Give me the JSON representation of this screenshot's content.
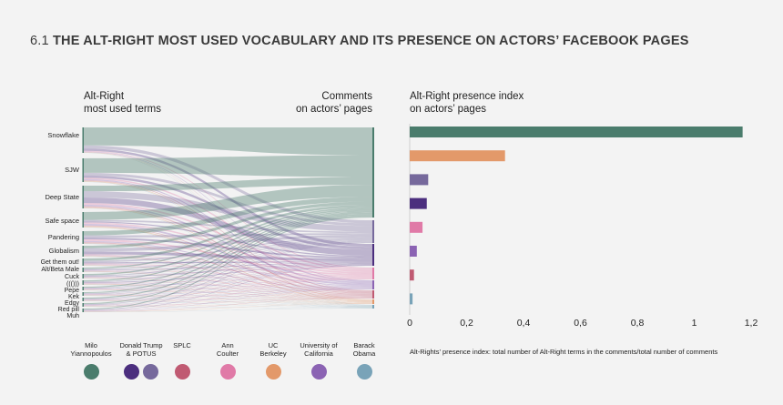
{
  "title": {
    "number": "6.1",
    "text": "THE ALT-RIGHT MOST USED VOCABULARY AND ITS PRESENCE ON ACTORS’ FACEBOOK PAGES"
  },
  "sankey_headers": {
    "left": [
      "Alt-Right",
      "most used terms"
    ],
    "right": [
      "Comments",
      "on actors’ pages"
    ]
  },
  "bar_header": [
    "Alt-Right presence index",
    "on actors’ pages"
  ],
  "colors": {
    "milo": "#4a7c6c",
    "trump": "#4b2e7e",
    "potus": "#76699c",
    "splc": "#c05a72",
    "ann": "#e07aa7",
    "uc": "#e3996a",
    "university": "#8b63b3",
    "obama": "#79a3b8"
  },
  "legend": [
    {
      "label": [
        "Milo",
        "Yiannopoulos"
      ],
      "colors": [
        "#4a7c6c"
      ]
    },
    {
      "label": [
        "Donald Trump",
        "& POTUS"
      ],
      "colors": [
        "#4b2e7e",
        "#76699c"
      ]
    },
    {
      "label": [
        "SPLC"
      ],
      "colors": [
        "#c05a72"
      ]
    },
    {
      "label": [
        "Ann",
        "Coulter"
      ],
      "colors": [
        "#e07aa7"
      ]
    },
    {
      "label": [
        "UC",
        "Berkeley"
      ],
      "colors": [
        "#e3996a"
      ]
    },
    {
      "label": [
        "University of",
        "California"
      ],
      "colors": [
        "#8b63b3"
      ]
    },
    {
      "label": [
        "Barack",
        "Obama"
      ],
      "colors": [
        "#79a3b8"
      ]
    }
  ],
  "sankey_terms": [
    "Snowflake",
    "SJW",
    "Deep State",
    "Safe space",
    "Pandering",
    "Globalism",
    "Get them out!",
    "Alt/Beta Male",
    "Cuck",
    "((()))",
    "Pepe",
    "Kek",
    "Edgy",
    "Red pill",
    "Muh"
  ],
  "sankey_actors": [
    "Milo Yiannopoulos",
    "Donald Trump & POTUS",
    "SPLC",
    "Ann Coulter",
    "UC Berkeley",
    "University of California",
    "Barack Obama"
  ],
  "chart_data": {
    "type": "bar",
    "orientation": "horizontal",
    "title": "Alt-Right presence index on actors’ pages",
    "categories": [
      "Milo Yiannopoulos",
      "UC Berkeley",
      "POTUS",
      "Donald Trump",
      "Ann Coulter",
      "University of California",
      "SPLC",
      "Barack Obama"
    ],
    "values": [
      1.17,
      0.335,
      0.065,
      0.06,
      0.045,
      0.025,
      0.015,
      0.01
    ],
    "bar_colors": [
      "#4a7c6c",
      "#e3996a",
      "#76699c",
      "#4b2e7e",
      "#e07aa7",
      "#8b63b3",
      "#c05a72",
      "#79a3b8"
    ],
    "xlim": [
      0,
      1.2
    ],
    "ticks": [
      "0",
      "0,2",
      "0,4",
      "0,6",
      "0,8",
      "1",
      "1,2"
    ],
    "xlabel": "",
    "ylabel": "",
    "note": "Alt-Rights’ presence index: total number of Alt-Right terms in the comments/total number of comments"
  }
}
